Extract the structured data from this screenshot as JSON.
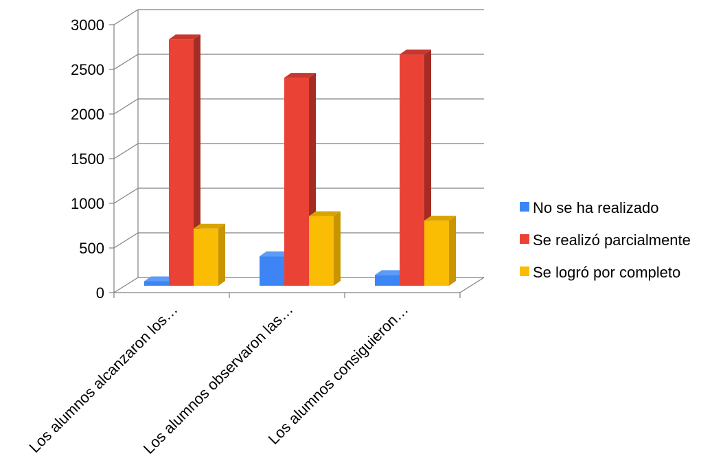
{
  "chart_data": {
    "type": "bar",
    "title": "",
    "xlabel": "",
    "ylabel": "",
    "categories": [
      "Los alumnos alcanzaron los…",
      "Los alumnos observaron las…",
      "Los alumnos consiguieron…"
    ],
    "series": [
      {
        "name": "No se ha realizado",
        "values": [
          50,
          330,
          120
        ],
        "color": "#3D85F5",
        "side_color": "#2A62C4",
        "top_color": "#5C9BF7"
      },
      {
        "name": "Se realizó parcialmente",
        "values": [
          2760,
          2330,
          2590
        ],
        "color": "#EA4335",
        "side_color": "#A32D25",
        "top_color": "#C8372D"
      },
      {
        "name": "Se logró por completo",
        "values": [
          640,
          780,
          730
        ],
        "color": "#FBBC04",
        "side_color": "#C79500",
        "top_color": "#D9A300"
      }
    ],
    "ylim": [
      0,
      3000
    ],
    "yticks": [
      "0",
      "500",
      "1000",
      "1500",
      "2000",
      "2500",
      "3000"
    ],
    "ytick_values": [
      0,
      500,
      1000,
      1500,
      2000,
      2500,
      3000
    ],
    "grid": true,
    "three_d": true,
    "legend_position": "right"
  }
}
